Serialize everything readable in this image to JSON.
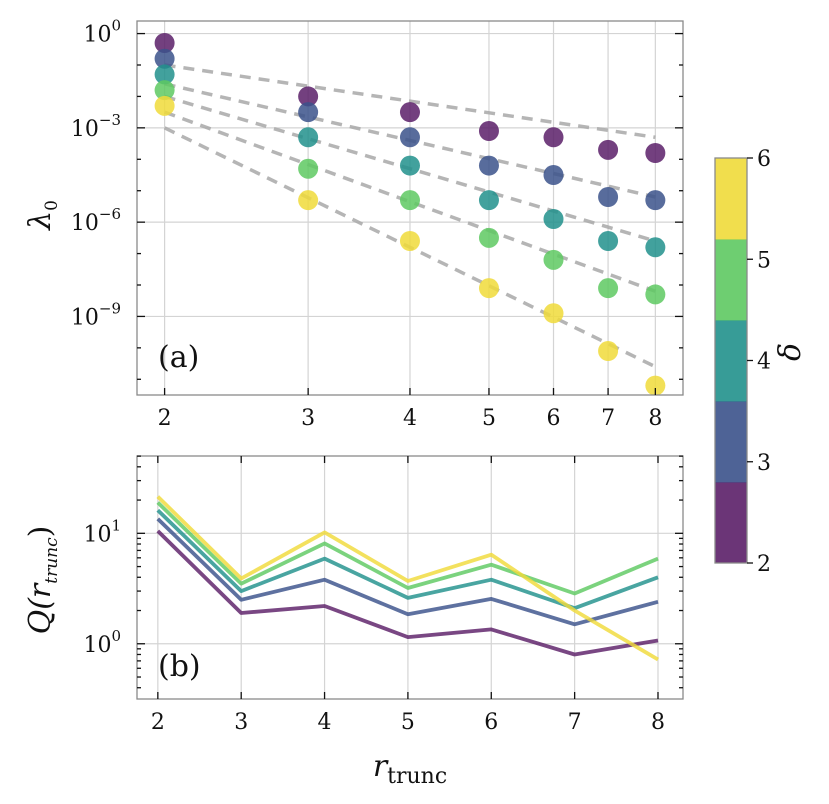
{
  "colors": {
    "2": "#5b1f68",
    "3": "#3b528b",
    "4": "#21918c",
    "5": "#5ec962",
    "6": "#f0da3a",
    "fit": "#a8a8a8"
  },
  "chart_data": [
    {
      "type": "scatter",
      "panel_label": "(a)",
      "ylabel": "λ",
      "ylabel_sub": "0",
      "xscale": "log",
      "yscale": "log",
      "xlim": [
        1.85,
        8.65
      ],
      "ylim_exp": [
        -11.5,
        0.4
      ],
      "x_ticks": [
        2,
        3,
        4,
        5,
        6,
        7,
        8
      ],
      "y_ticks": [
        {
          "exp": 0,
          "base": "10",
          "sup": "0"
        },
        {
          "exp": -3,
          "base": "10",
          "sup": "−3"
        },
        {
          "exp": -6,
          "base": "10",
          "sup": "−6"
        },
        {
          "exp": -9,
          "base": "10",
          "sup": "−9"
        }
      ],
      "x": [
        2,
        3,
        4,
        5,
        6,
        7,
        8
      ],
      "series": [
        {
          "delta": 2,
          "log10_values": [
            -0.3,
            -2.0,
            -2.5,
            -3.1,
            -3.3,
            -3.7,
            -3.8
          ]
        },
        {
          "delta": 3,
          "log10_values": [
            -0.8,
            -2.5,
            -3.3,
            -4.2,
            -4.5,
            -5.2,
            -5.3
          ]
        },
        {
          "delta": 4,
          "log10_values": [
            -1.3,
            -3.3,
            -4.2,
            -5.3,
            -5.9,
            -6.6,
            -6.8
          ]
        },
        {
          "delta": 5,
          "log10_values": [
            -1.8,
            -4.3,
            -5.3,
            -6.5,
            -7.2,
            -8.1,
            -8.3
          ]
        },
        {
          "delta": 6,
          "log10_values": [
            -2.3,
            -5.3,
            -6.6,
            -8.1,
            -8.9,
            -10.1,
            -11.2
          ]
        }
      ],
      "fits": [
        {
          "delta": 2,
          "from": [
            2,
            -1.0
          ],
          "to": [
            8,
            -3.3
          ]
        },
        {
          "delta": 3,
          "from": [
            2,
            -1.6
          ],
          "to": [
            8,
            -5.2
          ]
        },
        {
          "delta": 4,
          "from": [
            2,
            -2.0
          ],
          "to": [
            8,
            -6.6
          ]
        },
        {
          "delta": 5,
          "from": [
            2,
            -2.5
          ],
          "to": [
            8,
            -8.2
          ]
        },
        {
          "delta": 6,
          "from": [
            2,
            -3.0
          ],
          "to": [
            8,
            -10.6
          ]
        }
      ]
    },
    {
      "type": "line",
      "panel_label": "(b)",
      "xlabel": "r",
      "xlabel_sub": "trunc",
      "ylabel": "Q(r",
      "ylabel_sub": "trunc",
      "ylabel_close": ")",
      "xscale": "linear",
      "yscale": "log",
      "xlim": [
        1.75,
        8.3
      ],
      "ylim_exp": [
        -0.5,
        1.7
      ],
      "x_ticks": [
        2,
        3,
        4,
        5,
        6,
        7,
        8
      ],
      "y_ticks": [
        {
          "exp": 1,
          "base": "10",
          "sup": "1"
        },
        {
          "exp": 0,
          "base": "10",
          "sup": "0"
        }
      ],
      "x": [
        2,
        3,
        4,
        5,
        6,
        7,
        8
      ],
      "series": [
        {
          "delta": 2,
          "values": [
            10.5,
            1.9,
            2.2,
            1.15,
            1.35,
            0.8,
            1.07
          ]
        },
        {
          "delta": 3,
          "values": [
            13.5,
            2.5,
            3.8,
            1.85,
            2.55,
            1.5,
            2.4
          ]
        },
        {
          "delta": 4,
          "values": [
            16.2,
            3.0,
            5.9,
            2.6,
            3.8,
            2.1,
            4.0
          ]
        },
        {
          "delta": 5,
          "values": [
            19.0,
            3.5,
            8.1,
            3.2,
            5.2,
            2.85,
            5.9
          ]
        },
        {
          "delta": 6,
          "values": [
            21.5,
            3.9,
            10.2,
            3.7,
            6.4,
            2.0,
            0.72
          ]
        }
      ]
    }
  ],
  "colorbar": {
    "label": "δ",
    "ticks": [
      2,
      3,
      4,
      5,
      6
    ],
    "levels": [
      2,
      3,
      4,
      5,
      6
    ]
  }
}
